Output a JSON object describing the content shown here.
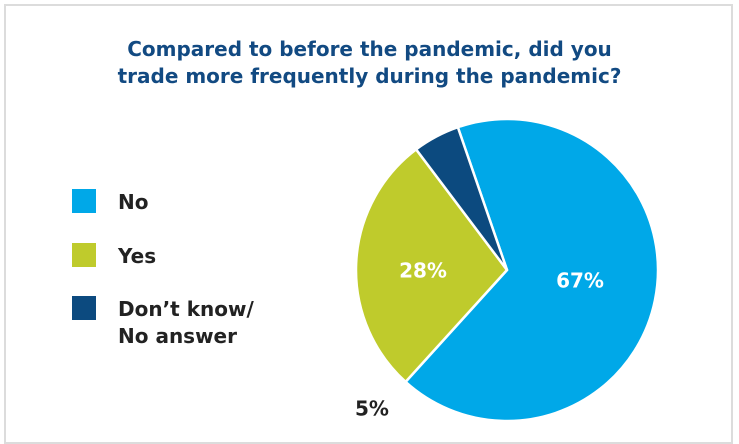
{
  "chart_data": {
    "type": "pie",
    "title": "Compared to before the pandemic, did you trade more frequently during the pandemic?",
    "categories": [
      "No",
      "Yes",
      "Don’t know/ No answer"
    ],
    "values": [
      67,
      28,
      5
    ],
    "labels": [
      "67%",
      "28%",
      "5%"
    ],
    "colors": [
      "#00a8e8",
      "#bfcb2c",
      "#0c4a7f"
    ],
    "legend_position": "left"
  },
  "title_lines": [
    "Compared to before the pandemic, did you",
    "trade more frequently during the pandemic?"
  ],
  "legend": {
    "items": [
      {
        "label": "No",
        "color": "#00a8e8"
      },
      {
        "label": "Yes",
        "color": "#bfcb2c"
      },
      {
        "label": "Don’t know/",
        "label2": "No answer",
        "color": "#0c4a7f"
      }
    ]
  }
}
